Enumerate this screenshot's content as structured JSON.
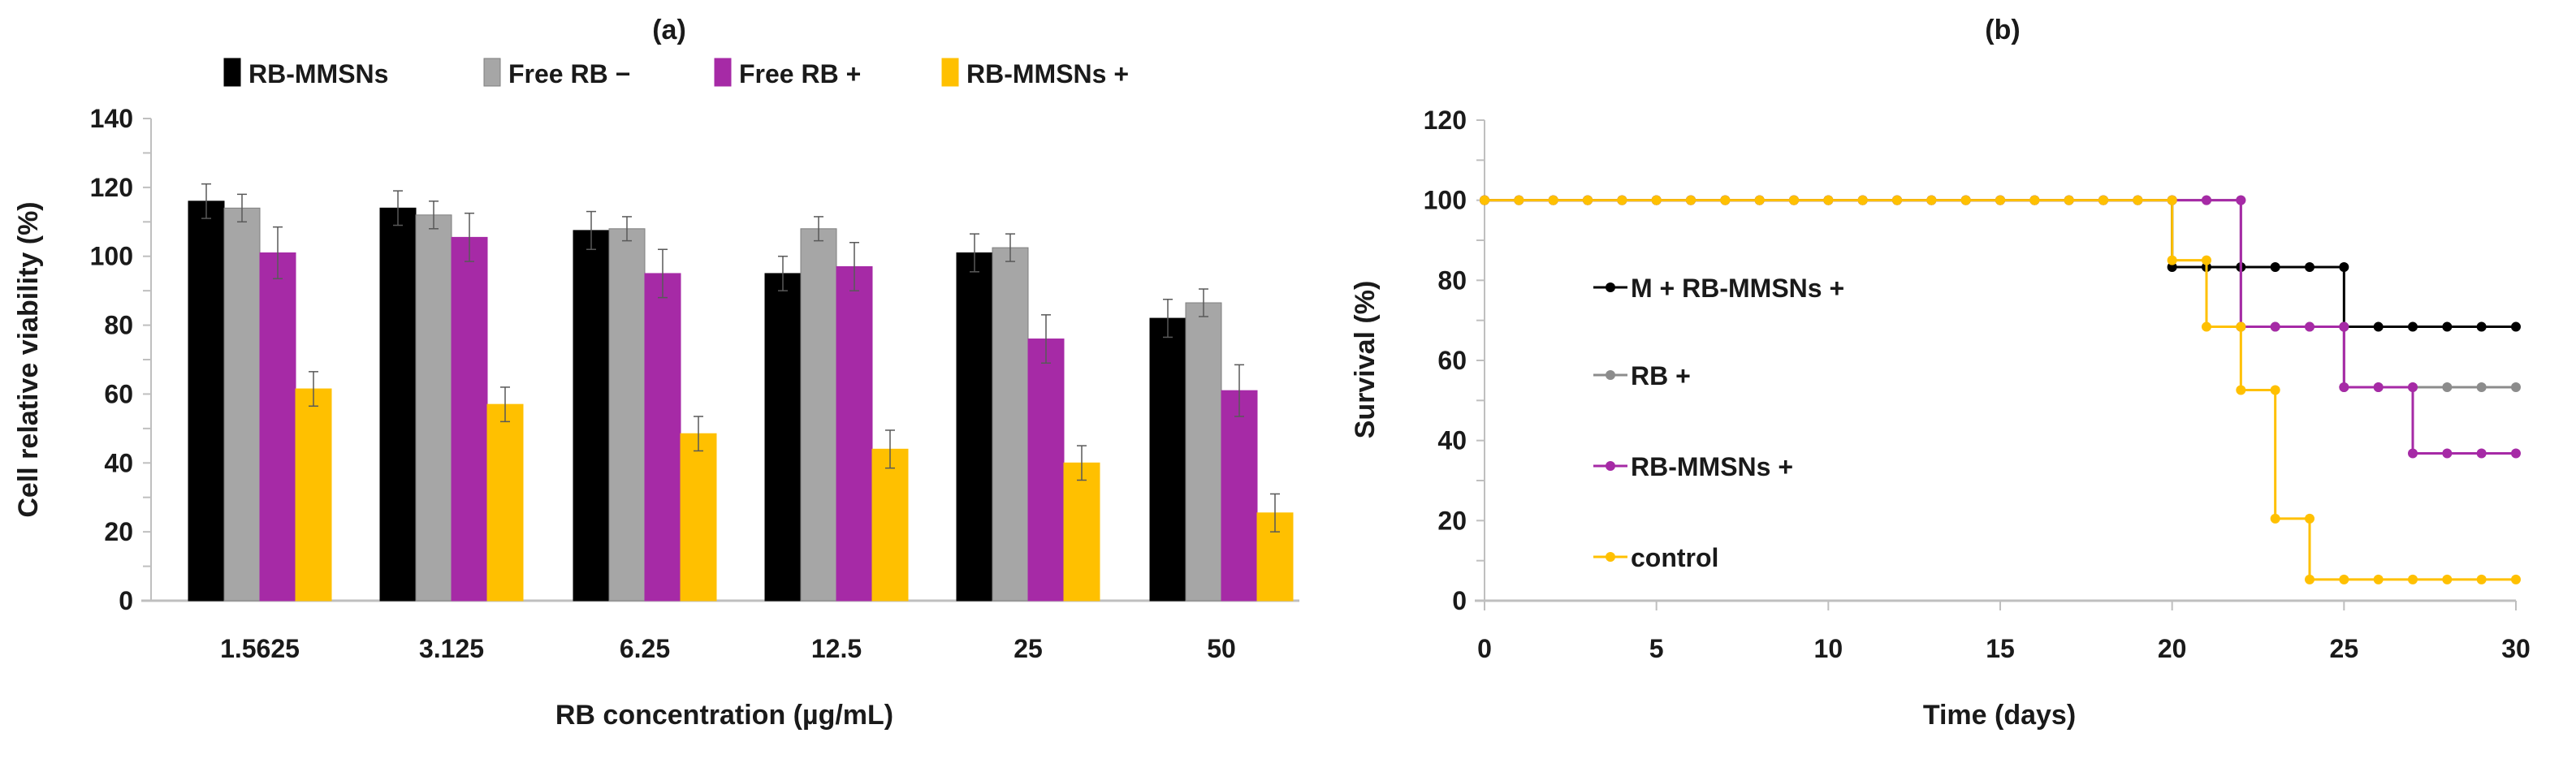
{
  "chart_data": [
    {
      "type": "bar",
      "title": "(a)",
      "xlabel": "RB concentration (µg/mL)",
      "ylabel": "Cell relative viability (%)",
      "ylim": [
        0,
        140
      ],
      "yticks": [
        "0",
        "20",
        "40",
        "60",
        "80",
        "100",
        "120",
        "140"
      ],
      "categories": [
        "1.5625",
        "3.125",
        "6.25",
        "12.5",
        "25",
        "50"
      ],
      "legend_placement": "top",
      "series": [
        {
          "name": "RB-MMSNs",
          "color": "#000000",
          "values": [
            116,
            114,
            107.5,
            95,
            101,
            82
          ],
          "errors": [
            5,
            5,
            5.5,
            5,
            5.5,
            5.5
          ]
        },
        {
          "name": "Free RB −",
          "color": "#a6a6a6",
          "values": [
            114,
            112,
            108,
            108,
            102.5,
            86.5
          ],
          "errors": [
            4,
            4,
            3.5,
            3.5,
            4,
            4
          ]
        },
        {
          "name": "Free RB +",
          "color": "#a62aa6",
          "values": [
            101,
            105.5,
            95,
            97,
            76,
            61
          ],
          "errors": [
            7.5,
            7,
            7,
            7,
            7,
            7.5
          ]
        },
        {
          "name": "RB-MMSNs +",
          "color": "#ffc000",
          "values": [
            61.5,
            57,
            48.5,
            44,
            40,
            25.5
          ],
          "errors": [
            5,
            5,
            5,
            5.5,
            5,
            5.5
          ]
        }
      ]
    },
    {
      "type": "line",
      "title": "(b)",
      "xlabel": "Time (days)",
      "ylabel": "Survival (%)",
      "xlim": [
        0,
        30
      ],
      "ylim": [
        0,
        120
      ],
      "xticks": [
        "0",
        "5",
        "10",
        "15",
        "20",
        "25",
        "30"
      ],
      "yticks": [
        "0",
        "20",
        "40",
        "60",
        "80",
        "100",
        "120"
      ],
      "legend_placement": "center-left",
      "series": [
        {
          "name": "M + RB-MMSNs +",
          "color": "#000000",
          "steps": [
            [
              0,
              100
            ],
            [
              20,
              83.3
            ],
            [
              25,
              68.4
            ],
            [
              30,
              68.4
            ]
          ]
        },
        {
          "name": "RB +",
          "color": "#8c8c8c",
          "steps": [
            [
              0,
              100
            ],
            [
              22,
              68.4
            ],
            [
              25,
              53.3
            ],
            [
              30,
              53.3
            ]
          ]
        },
        {
          "name": "RB-MMSNs +",
          "color": "#a62aa6",
          "steps": [
            [
              0,
              100
            ],
            [
              22,
              68.4
            ],
            [
              25,
              53.3
            ],
            [
              27,
              36.8
            ],
            [
              30,
              36.8
            ]
          ]
        },
        {
          "name": "control",
          "color": "#ffc000",
          "steps": [
            [
              0,
              100
            ],
            [
              20,
              85
            ],
            [
              21,
              68.4
            ],
            [
              22,
              52.6
            ],
            [
              23,
              20.5
            ],
            [
              24,
              5.3
            ],
            [
              30,
              5.3
            ]
          ]
        }
      ]
    }
  ]
}
